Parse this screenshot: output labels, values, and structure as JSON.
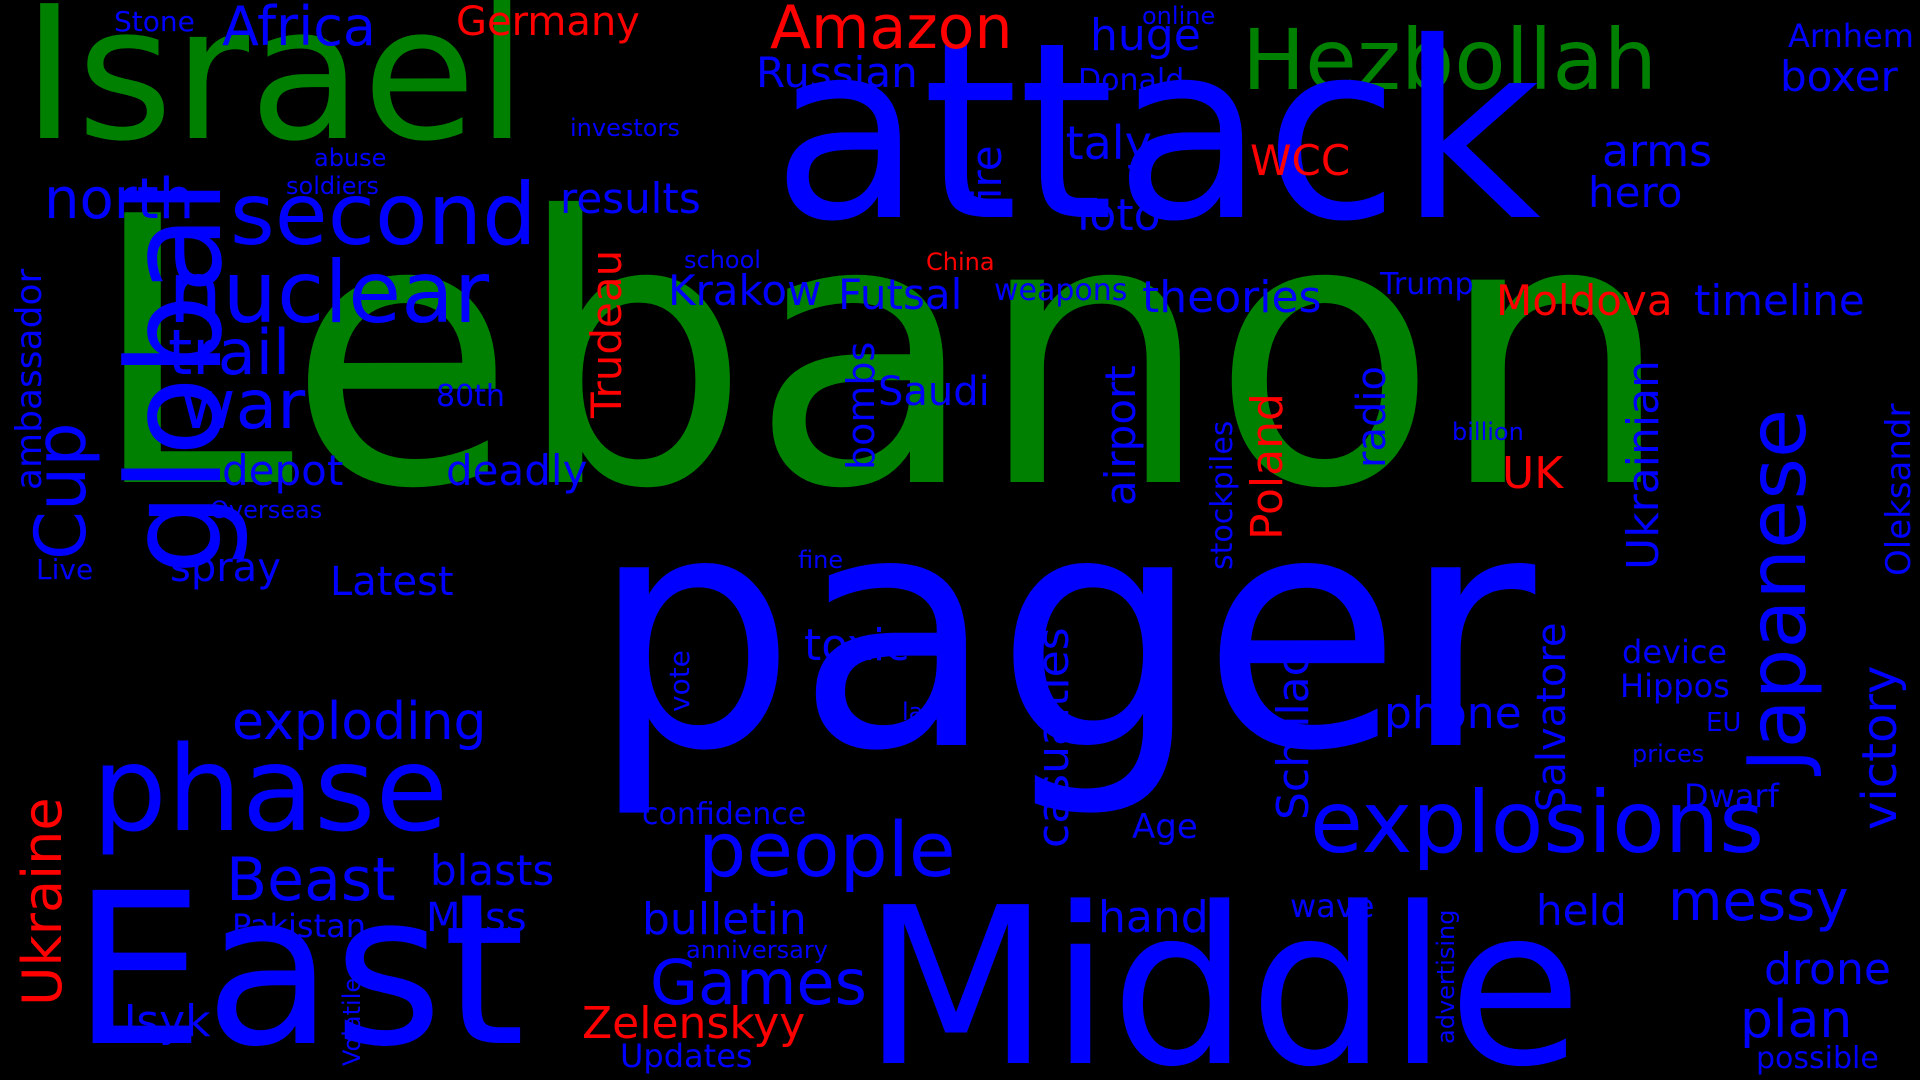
{
  "colors": {
    "background": "#000000",
    "green": "#008000",
    "blue": "#0000ff",
    "red": "#ff0000"
  },
  "words": {
    "lebanon": "Lebanon",
    "pager": "pager",
    "attack": "attack",
    "israel": "Israel",
    "middle": "Middle",
    "east": "East",
    "global": "global",
    "hezbollah": "Hezbollah",
    "phase": "phase",
    "explosions": "explosions",
    "second": "second",
    "nuclear": "nuclear",
    "japanese": "Japanese",
    "people": "people",
    "amazon": "Amazon",
    "africa": "Africa",
    "germany": "Germany",
    "stone": "Stone",
    "north": "north",
    "trail": "trail",
    "war": "war",
    "cup": "Cup",
    "ambassador": "ambassador",
    "depot": "depot",
    "deadly": "deadly",
    "spray": "spray",
    "latest": "Latest",
    "exploding": "exploding",
    "beast": "Beast",
    "blasts": "blasts",
    "mass": "Mass",
    "pakistan": "Pakistan",
    "live": "Live",
    "overseas": "Overseas",
    "80th": "80th",
    "ukraine": "Ukraine",
    "usyk": "Usyk",
    "volatile": "Volatile",
    "games": "Games",
    "zelenskyy": "Zelenskyy",
    "updates": "Updates",
    "bulletin": "bulletin",
    "anniversary": "anniversary",
    "confidence": "confidence",
    "vote": "vote",
    "land": "land",
    "fine": "fine",
    "toxic": "toxic",
    "casualties": "casualties",
    "trudeau": "Trudeau",
    "krakow": "Krakow",
    "futsal": "Futsal",
    "saudi": "Saudi",
    "bombs": "bombs",
    "results": "results",
    "russian": "Russian",
    "investors": "investors",
    "abuse": "abuse",
    "soldiers": "soldiers",
    "school": "school",
    "china": "China",
    "weapons": "weapons",
    "fire": "fire",
    "italy": "Italy",
    "toto": "Toto",
    "huge": "huge",
    "donald": "Donald",
    "online": "online",
    "wcc": "WCC",
    "theories": "theories",
    "airport": "airport",
    "poland": "Poland",
    "stockpiles": "stockpiles",
    "radio": "radio",
    "schillaci": "Schillaci",
    "salvatore": "Salvatore",
    "age": "Age",
    "hand": "hand",
    "wave": "wave",
    "advertising": "advertising",
    "phone": "phone",
    "uk": "UK",
    "billion": "billion",
    "moldova": "Moldova",
    "trump": "Trump",
    "ukrainian": "Ukrainian",
    "timeline": "timeline",
    "arms": "arms",
    "hero": "hero",
    "arnhem": "Arnhem",
    "boxer": "boxer",
    "oleksandr": "Oleksandr",
    "victory": "victory",
    "device": "device",
    "hippos": "Hippos",
    "eu": "EU",
    "prices": "prices",
    "dwarf": "Dwarf",
    "held": "held",
    "messy": "messy",
    "drone": "drone",
    "plan": "plan",
    "possible": "possible"
  }
}
